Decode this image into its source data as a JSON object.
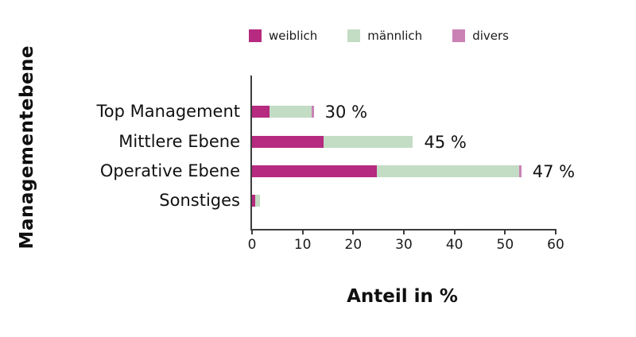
{
  "chart_data": {
    "type": "bar",
    "orientation": "horizontal-stacked",
    "title": "",
    "xlabel": "Anteil in %",
    "ylabel": "Managementebene",
    "categories": [
      "Top Management",
      "Mittlere Ebene",
      "Operative Ebene",
      "Sonstiges"
    ],
    "series": [
      {
        "name": "weiblich",
        "color": "#b62a80",
        "values": [
          3.5,
          14.2,
          24.7,
          0.6
        ]
      },
      {
        "name": "männlich",
        "color": "#c3dcc4",
        "values": [
          8.3,
          17.6,
          28.0,
          0.9
        ]
      },
      {
        "name": "divers",
        "color": "#ca82b5",
        "values": [
          0.4,
          0,
          0.5,
          0
        ]
      }
    ],
    "bar_labels": [
      "30 %",
      "45 %",
      "47 %",
      ""
    ],
    "x_ticks": [
      0,
      10,
      20,
      30,
      40,
      50,
      60
    ],
    "xlim": [
      0,
      60
    ],
    "grid": false,
    "legend_position": "top",
    "colors": {
      "axis": "#3d3d3d",
      "text": "#111111",
      "background": "#ffffff"
    }
  }
}
